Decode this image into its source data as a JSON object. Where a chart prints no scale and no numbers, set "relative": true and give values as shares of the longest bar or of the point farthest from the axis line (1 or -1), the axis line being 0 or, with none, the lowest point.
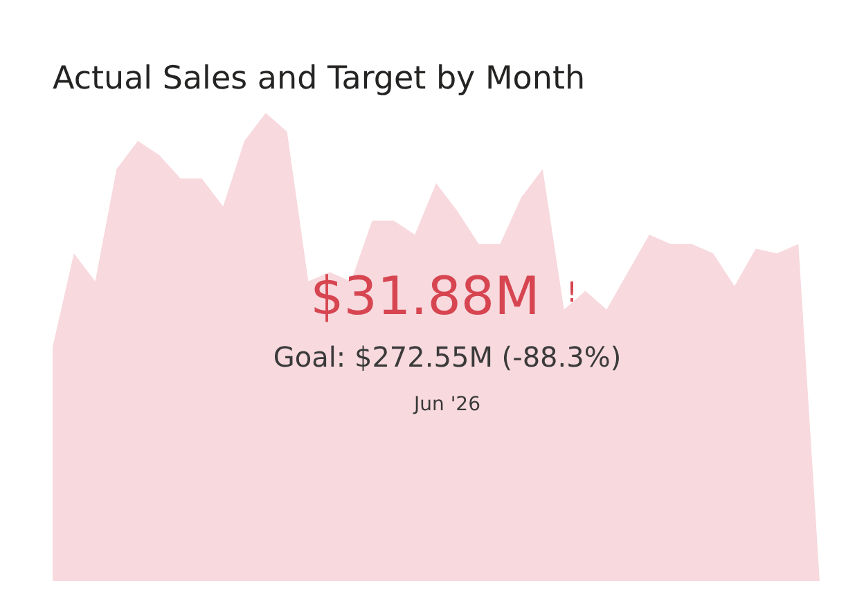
{
  "chart_data": {
    "type": "area",
    "title": "Actual Sales and Target by Month",
    "relative": true,
    "color": "#f7d9de",
    "categories": [
      null,
      null,
      null,
      null,
      null,
      null,
      null,
      null,
      null,
      null,
      null,
      null,
      null,
      null,
      null,
      null,
      null,
      null,
      null,
      null,
      null,
      null,
      null,
      null,
      null,
      null,
      null,
      null,
      null,
      null,
      null,
      null,
      null,
      null,
      null,
      null,
      null
    ],
    "values": [
      0.5,
      0.7,
      0.64,
      0.88,
      0.94,
      0.91,
      0.86,
      0.86,
      0.8,
      0.94,
      1,
      0.96,
      0.64,
      0.66,
      0.64,
      0.77,
      0.77,
      0.74,
      0.85,
      0.79,
      0.72,
      0.72,
      0.82,
      0.88,
      0.58,
      0.62,
      0.58,
      0.66,
      0.74,
      0.72,
      0.72,
      0.7,
      0.63,
      0.71,
      0.7,
      0.72,
      0
    ],
    "annotations": [
      "$31.88M",
      "!",
      "Goal: $272.55M (-88.3%)",
      "Jun '26"
    ]
  }
}
